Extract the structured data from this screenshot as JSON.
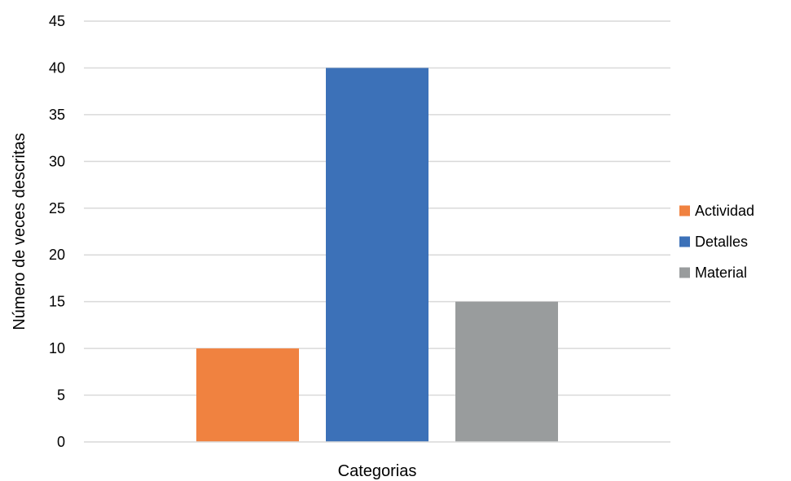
{
  "chart_data": {
    "type": "bar",
    "categories": [
      ""
    ],
    "series": [
      {
        "name": "Actividad",
        "values": [
          10
        ],
        "color": "#F08240"
      },
      {
        "name": "Detalles",
        "values": [
          40
        ],
        "color": "#3C71B8"
      },
      {
        "name": "Material",
        "values": [
          15
        ],
        "color": "#999C9D"
      }
    ],
    "title": "",
    "xlabel": "Categorias",
    "ylabel": "Número de veces descritas",
    "ylim": [
      0,
      45
    ],
    "yticks": [
      0,
      5,
      10,
      15,
      20,
      25,
      30,
      35,
      40,
      45
    ],
    "grid": true,
    "legend_position": "right"
  }
}
